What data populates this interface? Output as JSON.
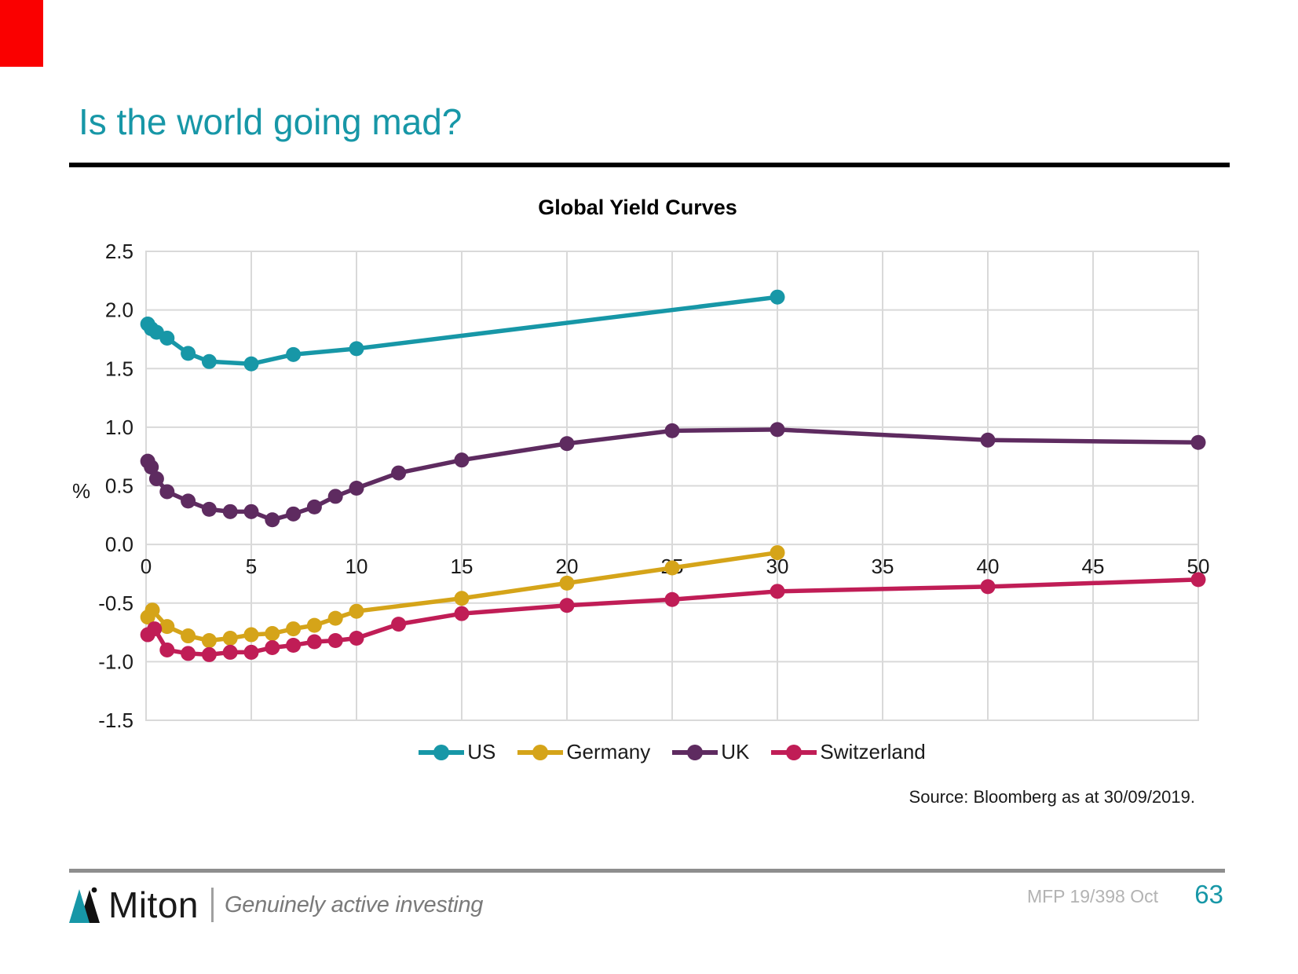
{
  "slide": {
    "title": "Is the world going mad?",
    "source": "Source: Bloomberg as at 30/09/2019.",
    "footer": {
      "logo_text": "Miton",
      "tagline": "Genuinely active investing",
      "doc_ref": "MFP 19/398 Oct",
      "page_number": "63"
    }
  },
  "colors": {
    "accent_teal": "#1797a7",
    "title_underline": "#000000",
    "grid": "#d9d9d9",
    "red_marker": "#fa0000",
    "footer_line": "#8e8e8e",
    "doc_ref_text": "#b3b3b3",
    "tagline_text": "#7a7a7a"
  },
  "chart_data": {
    "type": "line",
    "title": "Global Yield Curves",
    "xlabel": "",
    "ylabel": "%",
    "xlim": [
      0,
      50
    ],
    "ylim": [
      -1.5,
      2.5
    ],
    "x_ticks": [
      0,
      5,
      10,
      15,
      20,
      25,
      30,
      35,
      40,
      45,
      50
    ],
    "y_ticks": [
      2.5,
      2.0,
      1.5,
      1.0,
      0.5,
      0.0,
      -0.5,
      -1.0,
      -1.5
    ],
    "y_tick_labels": [
      "2.5",
      "2.0",
      "1.5",
      "1.0",
      "0.5",
      "0.0",
      "-0.5",
      "-1.0",
      "-1.5"
    ],
    "grid": true,
    "legend_position": "bottom",
    "series": [
      {
        "name": "US",
        "color": "#1797a7",
        "points": [
          [
            0.08,
            1.88
          ],
          [
            0.25,
            1.84
          ],
          [
            0.5,
            1.81
          ],
          [
            1,
            1.76
          ],
          [
            2,
            1.63
          ],
          [
            3,
            1.56
          ],
          [
            5,
            1.54
          ],
          [
            7,
            1.62
          ],
          [
            10,
            1.67
          ],
          [
            30,
            2.11
          ]
        ]
      },
      {
        "name": "Germany",
        "color": "#d5a419",
        "points": [
          [
            0.08,
            -0.62
          ],
          [
            0.3,
            -0.56
          ],
          [
            1,
            -0.7
          ],
          [
            2,
            -0.78
          ],
          [
            3,
            -0.82
          ],
          [
            4,
            -0.8
          ],
          [
            5,
            -0.77
          ],
          [
            6,
            -0.76
          ],
          [
            7,
            -0.72
          ],
          [
            8,
            -0.69
          ],
          [
            9,
            -0.63
          ],
          [
            10,
            -0.57
          ],
          [
            15,
            -0.46
          ],
          [
            20,
            -0.33
          ],
          [
            25,
            -0.2
          ],
          [
            30,
            -0.07
          ]
        ]
      },
      {
        "name": "UK",
        "color": "#5e2b60",
        "points": [
          [
            0.08,
            0.71
          ],
          [
            0.25,
            0.66
          ],
          [
            0.5,
            0.56
          ],
          [
            1,
            0.45
          ],
          [
            2,
            0.37
          ],
          [
            3,
            0.3
          ],
          [
            4,
            0.28
          ],
          [
            5,
            0.28
          ],
          [
            6,
            0.21
          ],
          [
            7,
            0.26
          ],
          [
            8,
            0.32
          ],
          [
            9,
            0.41
          ],
          [
            10,
            0.48
          ],
          [
            12,
            0.61
          ],
          [
            15,
            0.72
          ],
          [
            20,
            0.86
          ],
          [
            25,
            0.97
          ],
          [
            30,
            0.98
          ],
          [
            40,
            0.89
          ],
          [
            50,
            0.87
          ]
        ]
      },
      {
        "name": "Switzerland",
        "color": "#c01d56",
        "points": [
          [
            0.08,
            -0.77
          ],
          [
            0.4,
            -0.72
          ],
          [
            1,
            -0.9
          ],
          [
            2,
            -0.93
          ],
          [
            3,
            -0.94
          ],
          [
            4,
            -0.92
          ],
          [
            5,
            -0.92
          ],
          [
            6,
            -0.88
          ],
          [
            7,
            -0.86
          ],
          [
            8,
            -0.83
          ],
          [
            9,
            -0.82
          ],
          [
            10,
            -0.8
          ],
          [
            12,
            -0.68
          ],
          [
            15,
            -0.59
          ],
          [
            20,
            -0.52
          ],
          [
            25,
            -0.47
          ],
          [
            30,
            -0.4
          ],
          [
            40,
            -0.36
          ],
          [
            50,
            -0.3
          ]
        ]
      }
    ]
  }
}
